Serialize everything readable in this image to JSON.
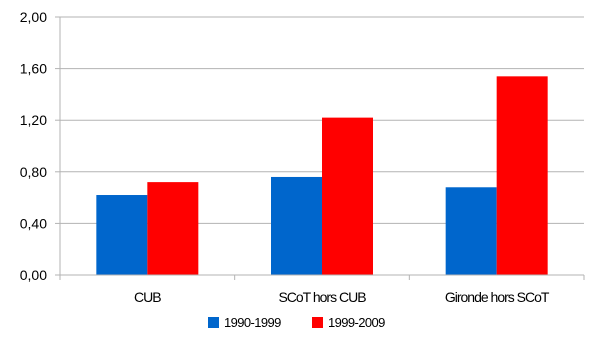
{
  "chart_data": {
    "type": "bar",
    "categories": [
      "CUB",
      "SCoT hors CUB",
      "Gironde hors SCoT"
    ],
    "series": [
      {
        "name": "1990-1999",
        "color": "#0066cc",
        "values": [
          0.62,
          0.76,
          0.68
        ]
      },
      {
        "name": "1999-2009",
        "color": "#ff0000",
        "values": [
          0.72,
          1.22,
          1.54
        ]
      }
    ],
    "ylim": [
      0,
      2.0
    ],
    "yticks": [
      "0,00",
      "0,40",
      "0,80",
      "1,20",
      "1,60",
      "2,00"
    ],
    "grid": true,
    "legend": "bottom-center",
    "title": "",
    "xlabel": "",
    "ylabel": ""
  }
}
